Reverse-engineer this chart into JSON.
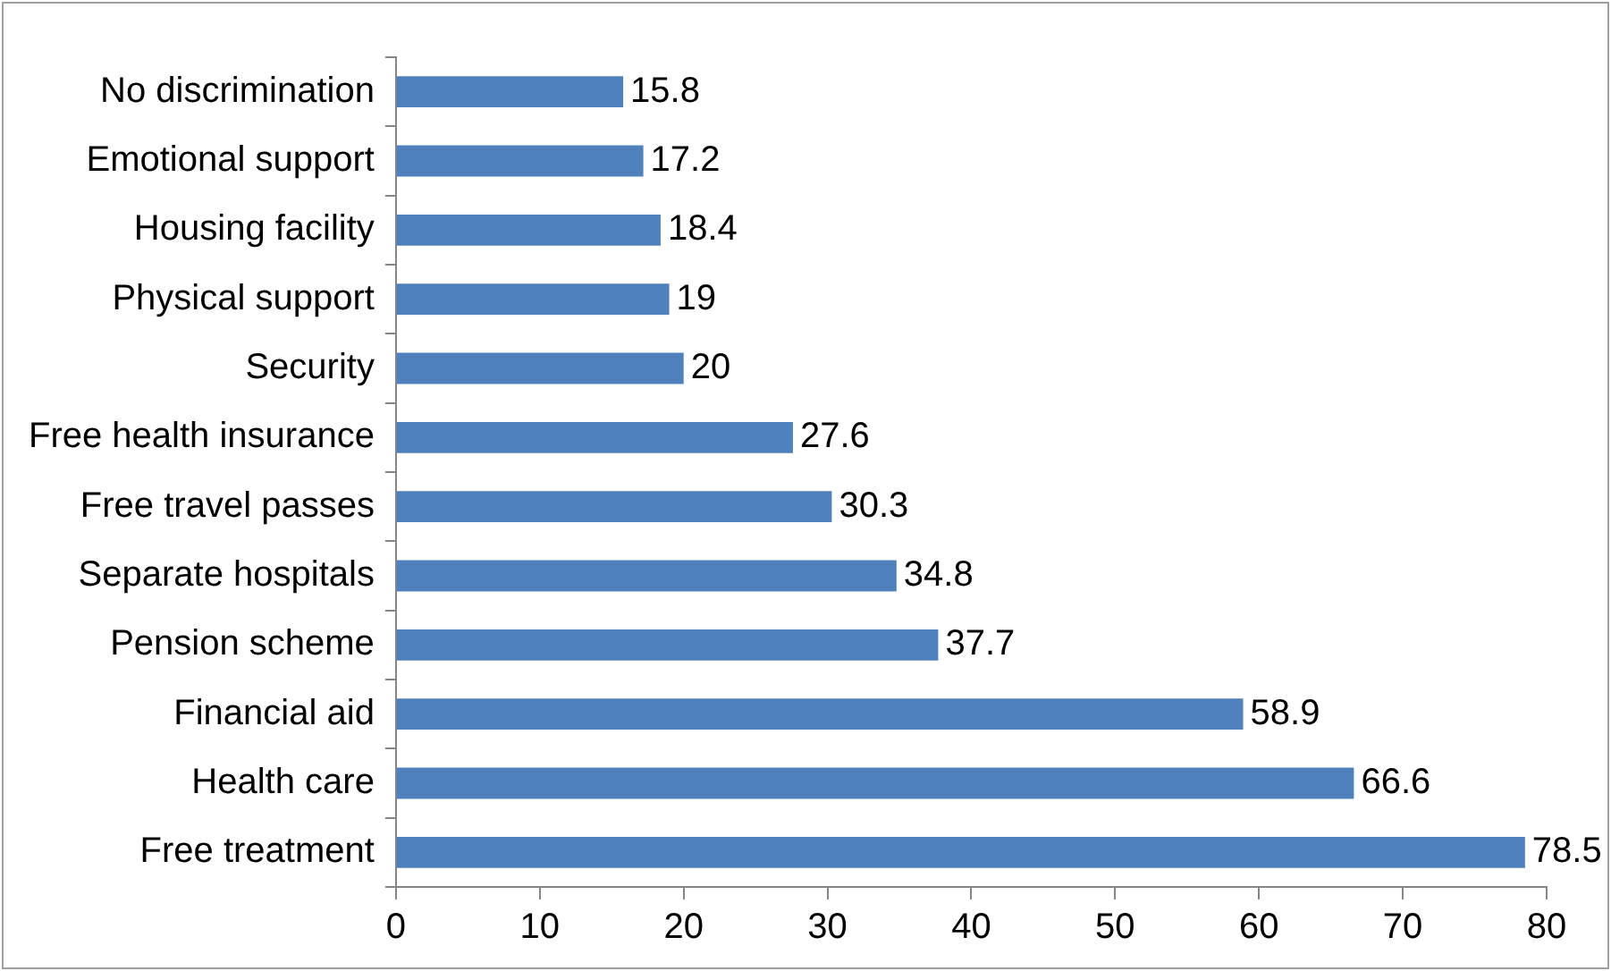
{
  "chart_data": {
    "type": "bar",
    "orientation": "horizontal",
    "categories": [
      "No discrimination",
      "Emotional support",
      "Housing facility",
      "Physical support",
      "Security",
      "Free health insurance",
      "Free travel passes",
      "Separate hospitals",
      "Pension scheme",
      "Financial aid",
      "Health care",
      "Free treatment"
    ],
    "values": [
      15.8,
      17.2,
      18.4,
      19,
      20,
      27.6,
      30.3,
      34.8,
      37.7,
      58.9,
      66.6,
      78.5
    ],
    "color": "#4f81bd",
    "xlim": [
      0,
      80
    ],
    "xticks": [
      0,
      10,
      20,
      30,
      40,
      50,
      60,
      70,
      80
    ],
    "grid": false,
    "legend": false,
    "data_labels": true
  }
}
